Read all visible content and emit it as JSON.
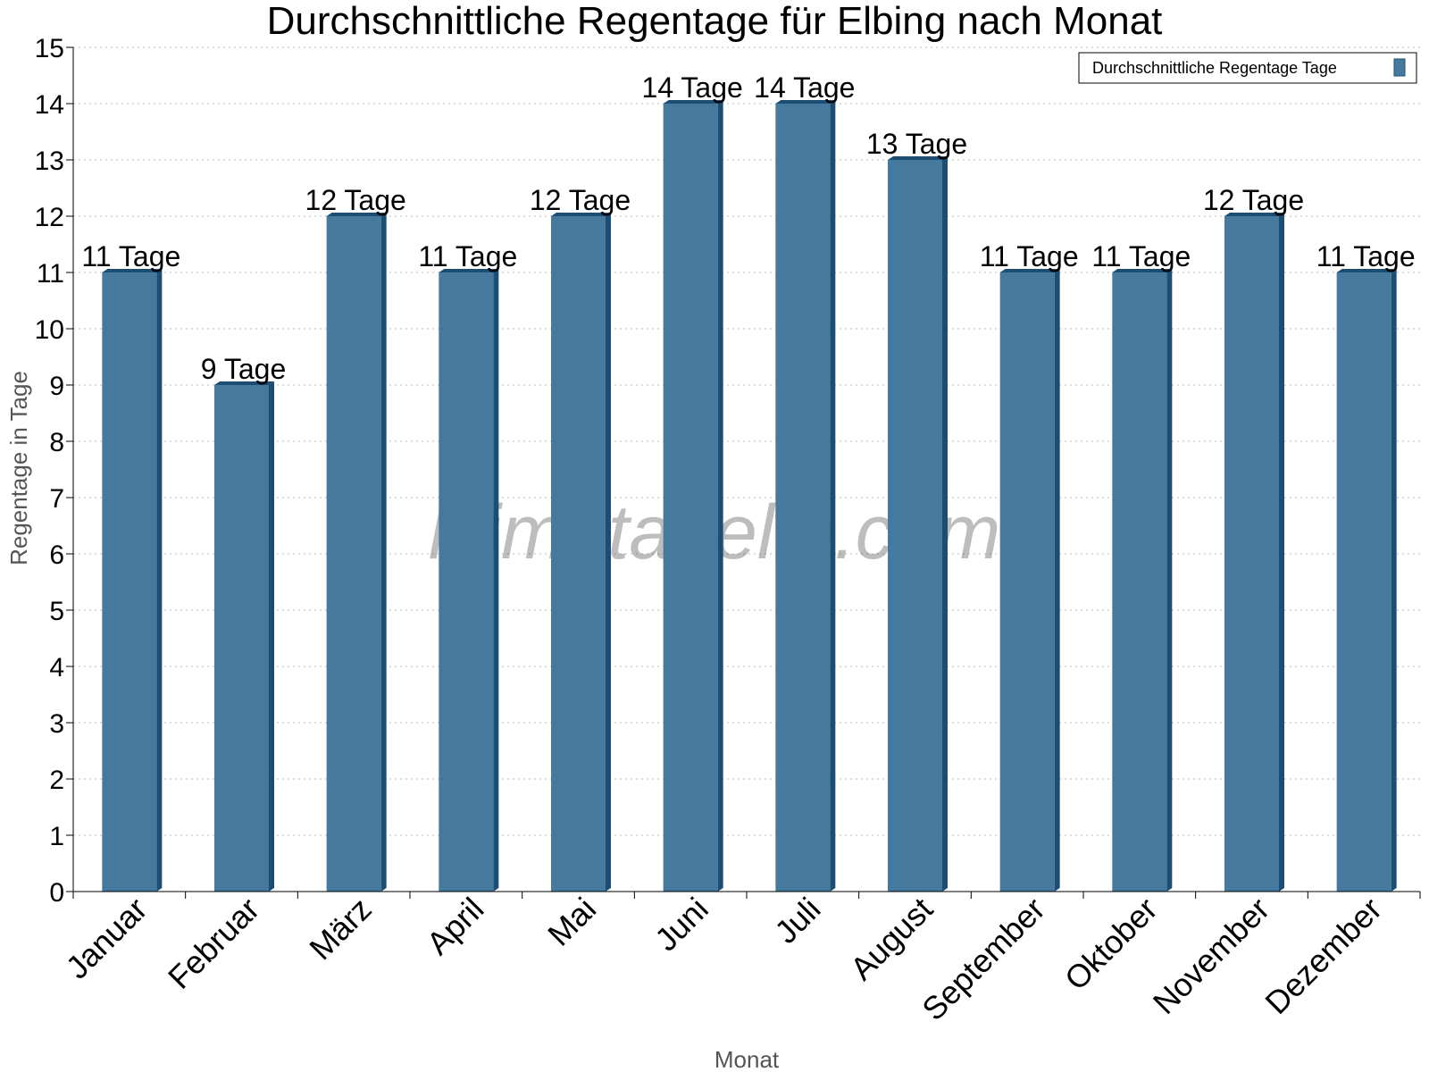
{
  "chart_data": {
    "type": "bar",
    "title": "Durchschnittliche Regentage für Elbing nach Monat",
    "xlabel": "Monat",
    "ylabel": "Regentage in Tage",
    "ylim": [
      0,
      15
    ],
    "yticks": [
      0,
      1,
      2,
      3,
      4,
      5,
      6,
      7,
      8,
      9,
      10,
      11,
      12,
      13,
      14,
      15
    ],
    "grid": true,
    "legend_position": "top-right",
    "categories": [
      "Januar",
      "Februar",
      "März",
      "April",
      "Mai",
      "Juni",
      "Juli",
      "August",
      "September",
      "Oktober",
      "November",
      "Dezember"
    ],
    "series": [
      {
        "name": "Durchschnittliche Regentage Tage",
        "values": [
          11,
          9,
          12,
          11,
          12,
          14,
          14,
          13,
          11,
          11,
          12,
          11
        ],
        "labels": [
          "11 Tage",
          "9 Tage",
          "12 Tage",
          "11 Tage",
          "12 Tage",
          "14 Tage",
          "14 Tage",
          "13 Tage",
          "11 Tage",
          "11 Tage",
          "12 Tage",
          "11 Tage"
        ],
        "color": "#457a9e",
        "side_color": "#1b4e72"
      }
    ]
  },
  "watermark": "klimatabelle.com"
}
